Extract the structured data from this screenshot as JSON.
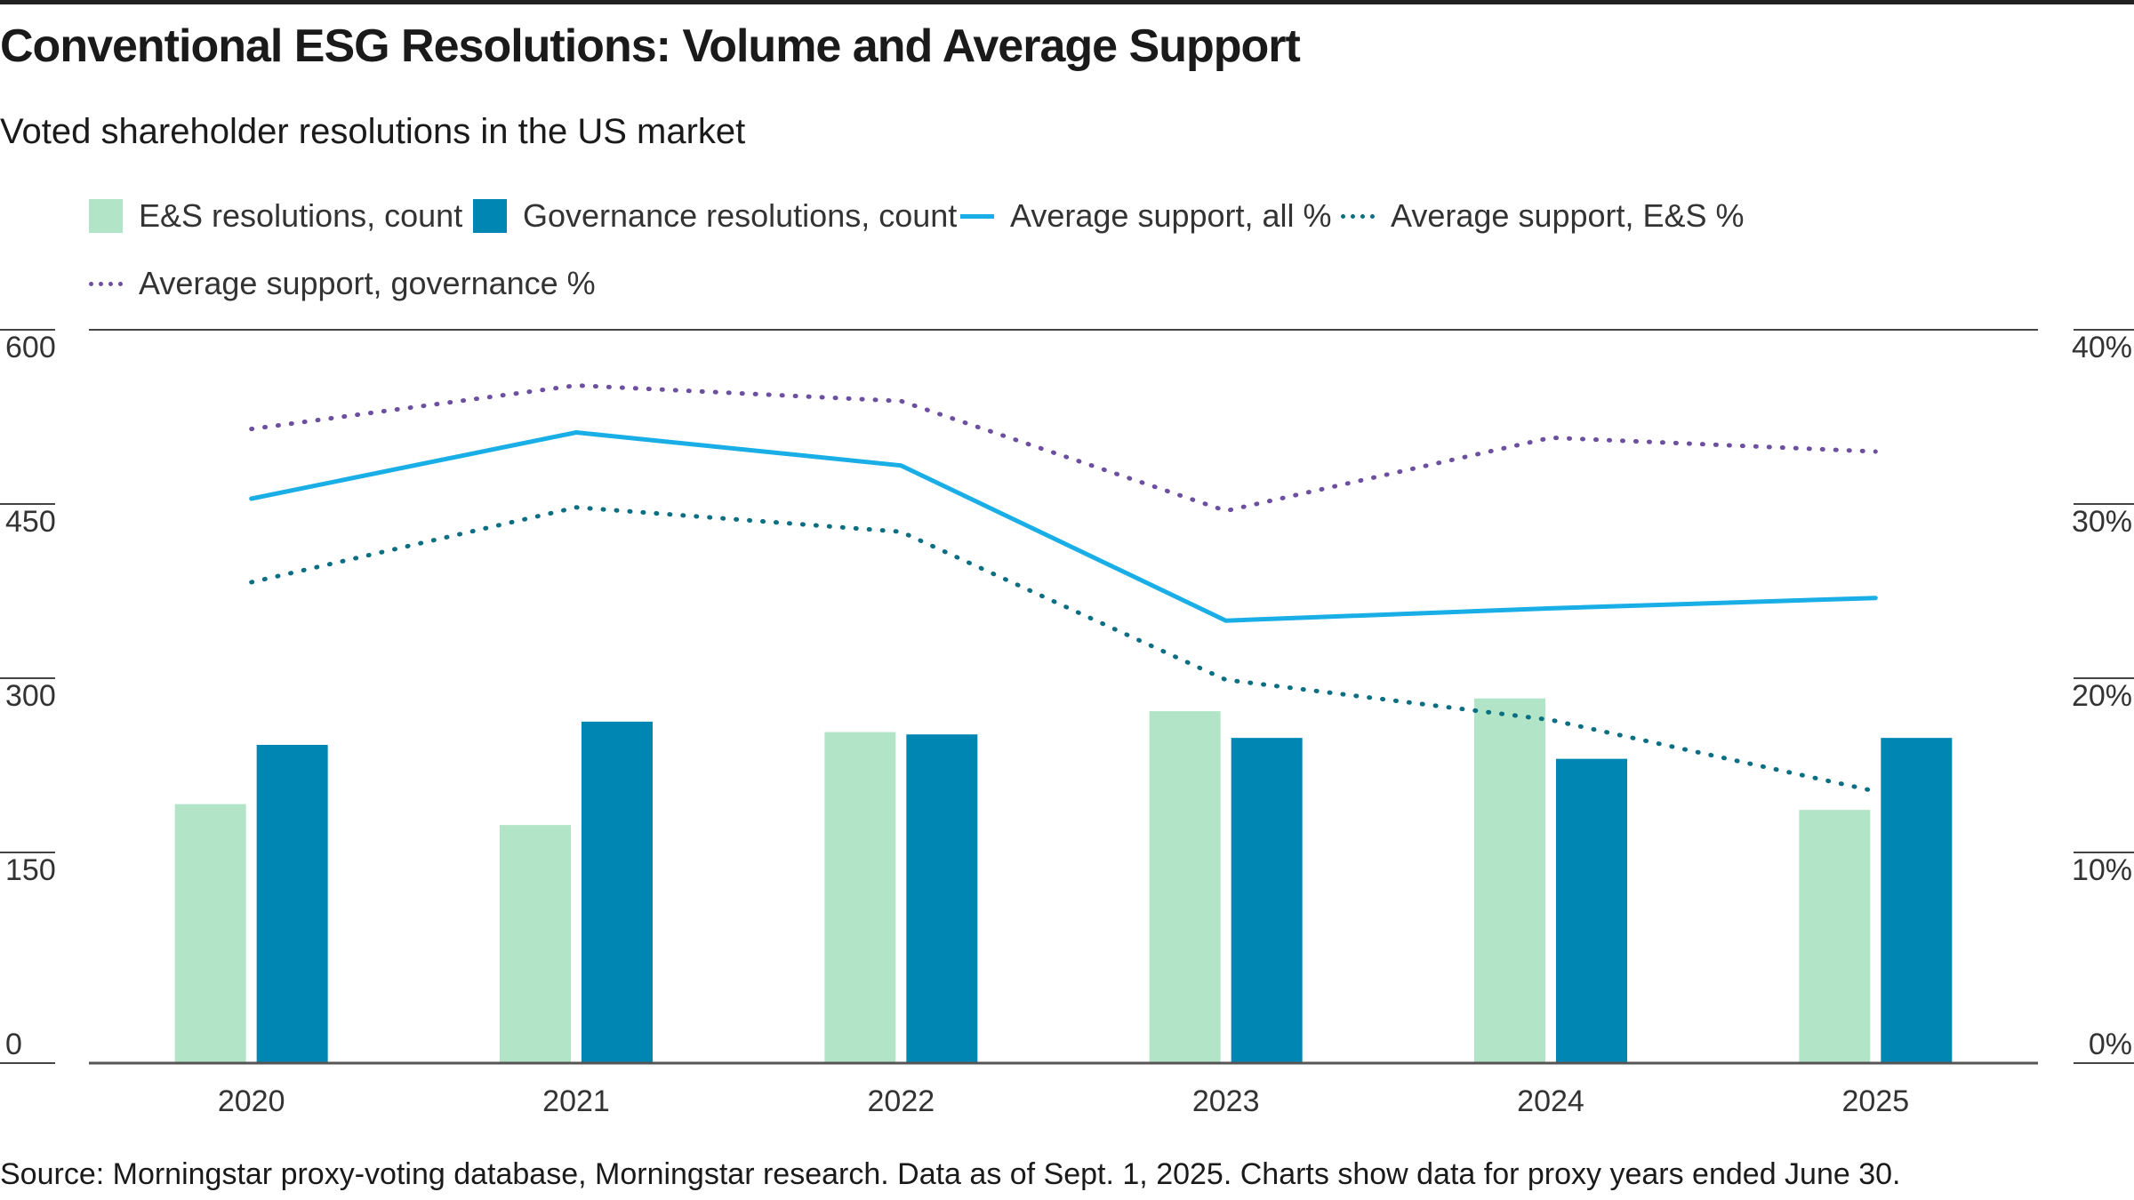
{
  "title": "Conventional ESG Resolutions: Volume and Average Support",
  "subtitle": "Voted shareholder resolutions in the US market",
  "source": "Source: Morningstar proxy-voting database, Morningstar research. Data as of Sept. 1, 2025. Charts show data for proxy years ended June 30.",
  "colors": {
    "es_bar": "#b2e5c8",
    "gov_bar": "#0086b3",
    "avg_all": "#19aee6",
    "avg_es": "#0b6e82",
    "avg_gov": "#6d4fa0",
    "axis": "#555555",
    "gridline": "#444444"
  },
  "legend": [
    {
      "label": "E&S resolutions, count",
      "kind": "box",
      "color": "#b2e5c8"
    },
    {
      "label": "Governance resolutions, count",
      "kind": "box",
      "color": "#0086b3"
    },
    {
      "label": "Average support, all %",
      "kind": "solid",
      "color": "#19aee6"
    },
    {
      "label": "Average support, E&S %",
      "kind": "dotted",
      "color": "#0b6e82"
    },
    {
      "label": "Average support, governance %",
      "kind": "dotted",
      "color": "#6d4fa0"
    }
  ],
  "chart_data": {
    "type": "bar",
    "categories": [
      "2020",
      "2021",
      "2022",
      "2023",
      "2024",
      "2025"
    ],
    "y_left": {
      "ticks": [
        "0",
        "150",
        "300",
        "450",
        "600"
      ],
      "range": [
        0,
        600
      ]
    },
    "y_right": {
      "ticks": [
        "0%",
        "10%",
        "20%",
        "30%",
        "40%"
      ],
      "range": [
        0,
        40
      ]
    },
    "bar_series": [
      {
        "name": "E&S resolutions, count",
        "axis": "left",
        "values": [
          223,
          205,
          285,
          303,
          314,
          218
        ]
      },
      {
        "name": "Governance resolutions, count",
        "axis": "left",
        "values": [
          274,
          294,
          283,
          280,
          262,
          280
        ]
      }
    ],
    "line_series": [
      {
        "name": "Average support, all %",
        "axis": "right",
        "style": "solid",
        "values": [
          32.4,
          36.2,
          34.3,
          25.4,
          26.1,
          26.7
        ]
      },
      {
        "name": "Average support, E&S %",
        "axis": "right",
        "style": "dotted",
        "values": [
          27.6,
          31.9,
          30.5,
          22.0,
          19.7,
          15.6
        ]
      },
      {
        "name": "Average support, governance %",
        "axis": "right",
        "style": "dotted",
        "values": [
          36.4,
          38.9,
          38.0,
          31.7,
          35.9,
          35.1
        ]
      }
    ],
    "legend_position": "top"
  }
}
